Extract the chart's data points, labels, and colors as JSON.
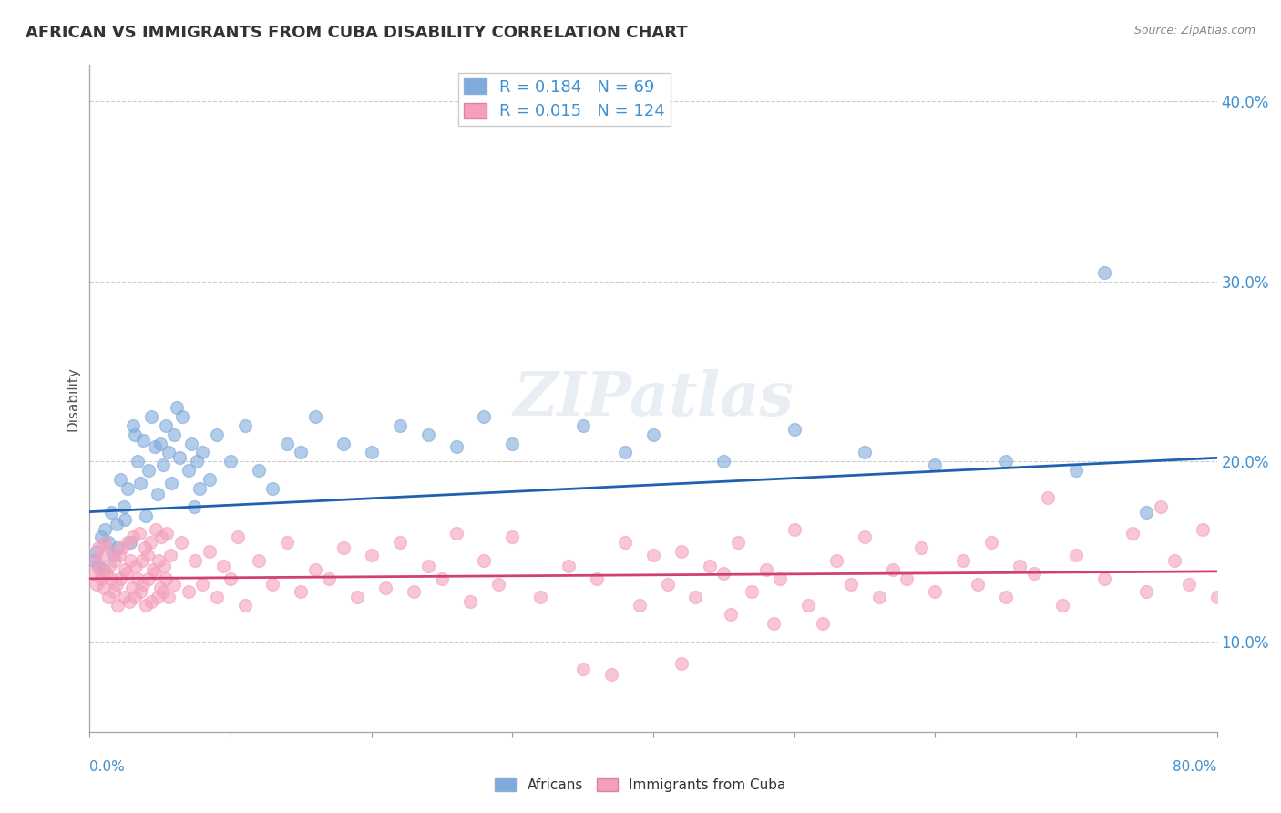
{
  "title": "AFRICAN VS IMMIGRANTS FROM CUBA DISABILITY CORRELATION CHART",
  "source": "Source: ZipAtlas.com",
  "ylabel": "Disability",
  "watermark": "ZIPatlas",
  "africans": {
    "R": 0.184,
    "N": 69,
    "color": "#7faadb",
    "line_color": "#2060b0",
    "points": [
      [
        0.3,
        14.5
      ],
      [
        0.5,
        15.0
      ],
      [
        0.6,
        14.2
      ],
      [
        0.8,
        15.8
      ],
      [
        1.0,
        14.0
      ],
      [
        1.1,
        16.2
      ],
      [
        1.3,
        15.5
      ],
      [
        1.5,
        17.2
      ],
      [
        1.7,
        14.8
      ],
      [
        1.9,
        16.5
      ],
      [
        2.0,
        15.2
      ],
      [
        2.2,
        19.0
      ],
      [
        2.4,
        17.5
      ],
      [
        2.5,
        16.8
      ],
      [
        2.7,
        18.5
      ],
      [
        2.9,
        15.5
      ],
      [
        3.1,
        22.0
      ],
      [
        3.2,
        21.5
      ],
      [
        3.4,
        20.0
      ],
      [
        3.6,
        18.8
      ],
      [
        3.8,
        21.2
      ],
      [
        4.0,
        17.0
      ],
      [
        4.2,
        19.5
      ],
      [
        4.4,
        22.5
      ],
      [
        4.6,
        20.8
      ],
      [
        4.8,
        18.2
      ],
      [
        5.0,
        21.0
      ],
      [
        5.2,
        19.8
      ],
      [
        5.4,
        22.0
      ],
      [
        5.6,
        20.5
      ],
      [
        5.8,
        18.8
      ],
      [
        6.0,
        21.5
      ],
      [
        6.2,
        23.0
      ],
      [
        6.4,
        20.2
      ],
      [
        6.6,
        22.5
      ],
      [
        7.0,
        19.5
      ],
      [
        7.2,
        21.0
      ],
      [
        7.4,
        17.5
      ],
      [
        7.6,
        20.0
      ],
      [
        7.8,
        18.5
      ],
      [
        8.0,
        20.5
      ],
      [
        8.5,
        19.0
      ],
      [
        9.0,
        21.5
      ],
      [
        10.0,
        20.0
      ],
      [
        11.0,
        22.0
      ],
      [
        12.0,
        19.5
      ],
      [
        13.0,
        18.5
      ],
      [
        14.0,
        21.0
      ],
      [
        15.0,
        20.5
      ],
      [
        16.0,
        22.5
      ],
      [
        18.0,
        21.0
      ],
      [
        20.0,
        20.5
      ],
      [
        22.0,
        22.0
      ],
      [
        24.0,
        21.5
      ],
      [
        26.0,
        20.8
      ],
      [
        28.0,
        22.5
      ],
      [
        30.0,
        21.0
      ],
      [
        35.0,
        22.0
      ],
      [
        38.0,
        20.5
      ],
      [
        40.0,
        21.5
      ],
      [
        45.0,
        20.0
      ],
      [
        50.0,
        21.8
      ],
      [
        55.0,
        20.5
      ],
      [
        60.0,
        19.8
      ],
      [
        65.0,
        20.0
      ],
      [
        70.0,
        19.5
      ],
      [
        72.0,
        30.5
      ],
      [
        75.0,
        17.2
      ]
    ],
    "trendline_x": [
      0,
      80
    ],
    "trendline_y": [
      17.2,
      20.2
    ]
  },
  "cuba": {
    "R": 0.015,
    "N": 124,
    "color": "#f4a0bb",
    "line_color": "#d04070",
    "points": [
      [
        0.2,
        13.8
      ],
      [
        0.4,
        14.5
      ],
      [
        0.5,
        13.2
      ],
      [
        0.6,
        15.2
      ],
      [
        0.7,
        14.0
      ],
      [
        0.8,
        13.5
      ],
      [
        0.9,
        14.8
      ],
      [
        1.0,
        13.0
      ],
      [
        1.1,
        15.5
      ],
      [
        1.2,
        13.8
      ],
      [
        1.3,
        12.5
      ],
      [
        1.4,
        14.2
      ],
      [
        1.5,
        13.5
      ],
      [
        1.6,
        15.0
      ],
      [
        1.7,
        12.8
      ],
      [
        1.8,
        14.5
      ],
      [
        1.9,
        13.2
      ],
      [
        2.0,
        12.0
      ],
      [
        2.1,
        14.8
      ],
      [
        2.2,
        13.5
      ],
      [
        2.3,
        15.2
      ],
      [
        2.4,
        12.5
      ],
      [
        2.5,
        14.0
      ],
      [
        2.6,
        13.8
      ],
      [
        2.7,
        15.5
      ],
      [
        2.8,
        12.2
      ],
      [
        2.9,
        14.5
      ],
      [
        3.0,
        13.0
      ],
      [
        3.1,
        15.8
      ],
      [
        3.2,
        12.5
      ],
      [
        3.3,
        14.2
      ],
      [
        3.4,
        13.5
      ],
      [
        3.5,
        16.0
      ],
      [
        3.6,
        12.8
      ],
      [
        3.7,
        14.5
      ],
      [
        3.8,
        13.2
      ],
      [
        3.9,
        15.2
      ],
      [
        4.0,
        12.0
      ],
      [
        4.1,
        14.8
      ],
      [
        4.2,
        13.5
      ],
      [
        4.3,
        15.5
      ],
      [
        4.4,
        12.2
      ],
      [
        4.5,
        14.0
      ],
      [
        4.6,
        13.8
      ],
      [
        4.7,
        16.2
      ],
      [
        4.8,
        12.5
      ],
      [
        4.9,
        14.5
      ],
      [
        5.0,
        13.0
      ],
      [
        5.1,
        15.8
      ],
      [
        5.2,
        12.8
      ],
      [
        5.3,
        14.2
      ],
      [
        5.4,
        13.5
      ],
      [
        5.5,
        16.0
      ],
      [
        5.6,
        12.5
      ],
      [
        5.7,
        14.8
      ],
      [
        6.0,
        13.2
      ],
      [
        6.5,
        15.5
      ],
      [
        7.0,
        12.8
      ],
      [
        7.5,
        14.5
      ],
      [
        8.0,
        13.2
      ],
      [
        8.5,
        15.0
      ],
      [
        9.0,
        12.5
      ],
      [
        9.5,
        14.2
      ],
      [
        10.0,
        13.5
      ],
      [
        10.5,
        15.8
      ],
      [
        11.0,
        12.0
      ],
      [
        12.0,
        14.5
      ],
      [
        13.0,
        13.2
      ],
      [
        14.0,
        15.5
      ],
      [
        15.0,
        12.8
      ],
      [
        16.0,
        14.0
      ],
      [
        17.0,
        13.5
      ],
      [
        18.0,
        15.2
      ],
      [
        19.0,
        12.5
      ],
      [
        20.0,
        14.8
      ],
      [
        21.0,
        13.0
      ],
      [
        22.0,
        15.5
      ],
      [
        23.0,
        12.8
      ],
      [
        24.0,
        14.2
      ],
      [
        25.0,
        13.5
      ],
      [
        26.0,
        16.0
      ],
      [
        27.0,
        12.2
      ],
      [
        28.0,
        14.5
      ],
      [
        29.0,
        13.2
      ],
      [
        30.0,
        15.8
      ],
      [
        32.0,
        12.5
      ],
      [
        34.0,
        14.2
      ],
      [
        36.0,
        13.5
      ],
      [
        38.0,
        15.5
      ],
      [
        39.0,
        12.0
      ],
      [
        40.0,
        14.8
      ],
      [
        41.0,
        13.2
      ],
      [
        42.0,
        15.0
      ],
      [
        43.0,
        12.5
      ],
      [
        44.0,
        14.2
      ],
      [
        45.0,
        13.8
      ],
      [
        46.0,
        15.5
      ],
      [
        47.0,
        12.8
      ],
      [
        48.0,
        14.0
      ],
      [
        49.0,
        13.5
      ],
      [
        50.0,
        16.2
      ],
      [
        51.0,
        12.0
      ],
      [
        52.0,
        11.0
      ],
      [
        53.0,
        14.5
      ],
      [
        54.0,
        13.2
      ],
      [
        55.0,
        15.8
      ],
      [
        56.0,
        12.5
      ],
      [
        57.0,
        14.0
      ],
      [
        58.0,
        13.5
      ],
      [
        59.0,
        15.2
      ],
      [
        60.0,
        12.8
      ],
      [
        62.0,
        14.5
      ],
      [
        63.0,
        13.2
      ],
      [
        64.0,
        15.5
      ],
      [
        65.0,
        12.5
      ],
      [
        66.0,
        14.2
      ],
      [
        67.0,
        13.8
      ],
      [
        68.0,
        18.0
      ],
      [
        69.0,
        12.0
      ],
      [
        70.0,
        14.8
      ],
      [
        72.0,
        13.5
      ],
      [
        74.0,
        16.0
      ],
      [
        75.0,
        12.8
      ],
      [
        76.0,
        17.5
      ],
      [
        77.0,
        14.5
      ],
      [
        78.0,
        13.2
      ],
      [
        79.0,
        16.2
      ],
      [
        80.0,
        12.5
      ],
      [
        35.0,
        8.5
      ],
      [
        37.0,
        8.2
      ],
      [
        42.0,
        8.8
      ],
      [
        45.5,
        11.5
      ],
      [
        48.5,
        11.0
      ]
    ],
    "trendline_x": [
      0,
      80
    ],
    "trendline_y": [
      13.5,
      13.9
    ]
  },
  "xlim": [
    0,
    80
  ],
  "ylim": [
    5,
    42
  ],
  "yticks": [
    10,
    20,
    30,
    40
  ],
  "ytick_labels": [
    "10.0%",
    "20.0%",
    "30.0%",
    "40.0%"
  ],
  "grid_color": "#cccccc",
  "background_color": "#ffffff"
}
